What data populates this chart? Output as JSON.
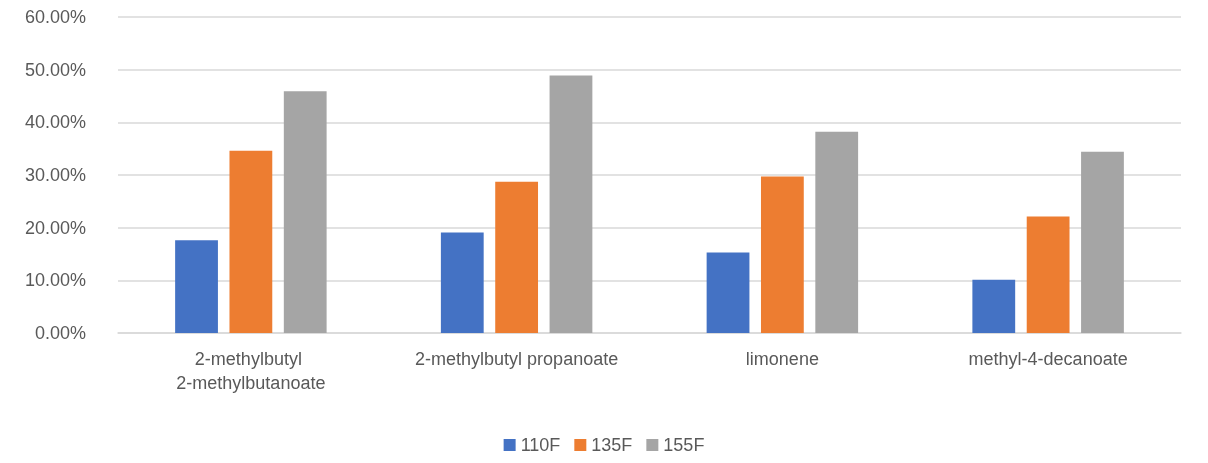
{
  "chart_data": {
    "type": "bar",
    "categories": [
      "2-methylbutyl 2-methylbutanoate",
      "2-methylbutyl propanoate",
      "limonene",
      "methyl-4-decanoate"
    ],
    "series": [
      {
        "name": "110F",
        "color": "#4472c4",
        "values": [
          17.6,
          19.1,
          15.3,
          10.1
        ]
      },
      {
        "name": "135F",
        "color": "#ed7d31",
        "values": [
          34.6,
          28.7,
          29.7,
          22.1
        ]
      },
      {
        "name": "155F",
        "color": "#a5a5a5",
        "values": [
          45.9,
          48.9,
          38.2,
          34.4
        ]
      }
    ],
    "ylim": [
      0,
      60
    ],
    "yticks": [
      {
        "value": 0,
        "label": "0.00%"
      },
      {
        "value": 10,
        "label": "10.00%"
      },
      {
        "value": 20,
        "label": "20.00%"
      },
      {
        "value": 30,
        "label": "30.00%"
      },
      {
        "value": 40,
        "label": "40.00%"
      },
      {
        "value": 50,
        "label": "50.00%"
      },
      {
        "value": 60,
        "label": "60.00%"
      }
    ],
    "grid": "y",
    "legend": "bottom"
  }
}
